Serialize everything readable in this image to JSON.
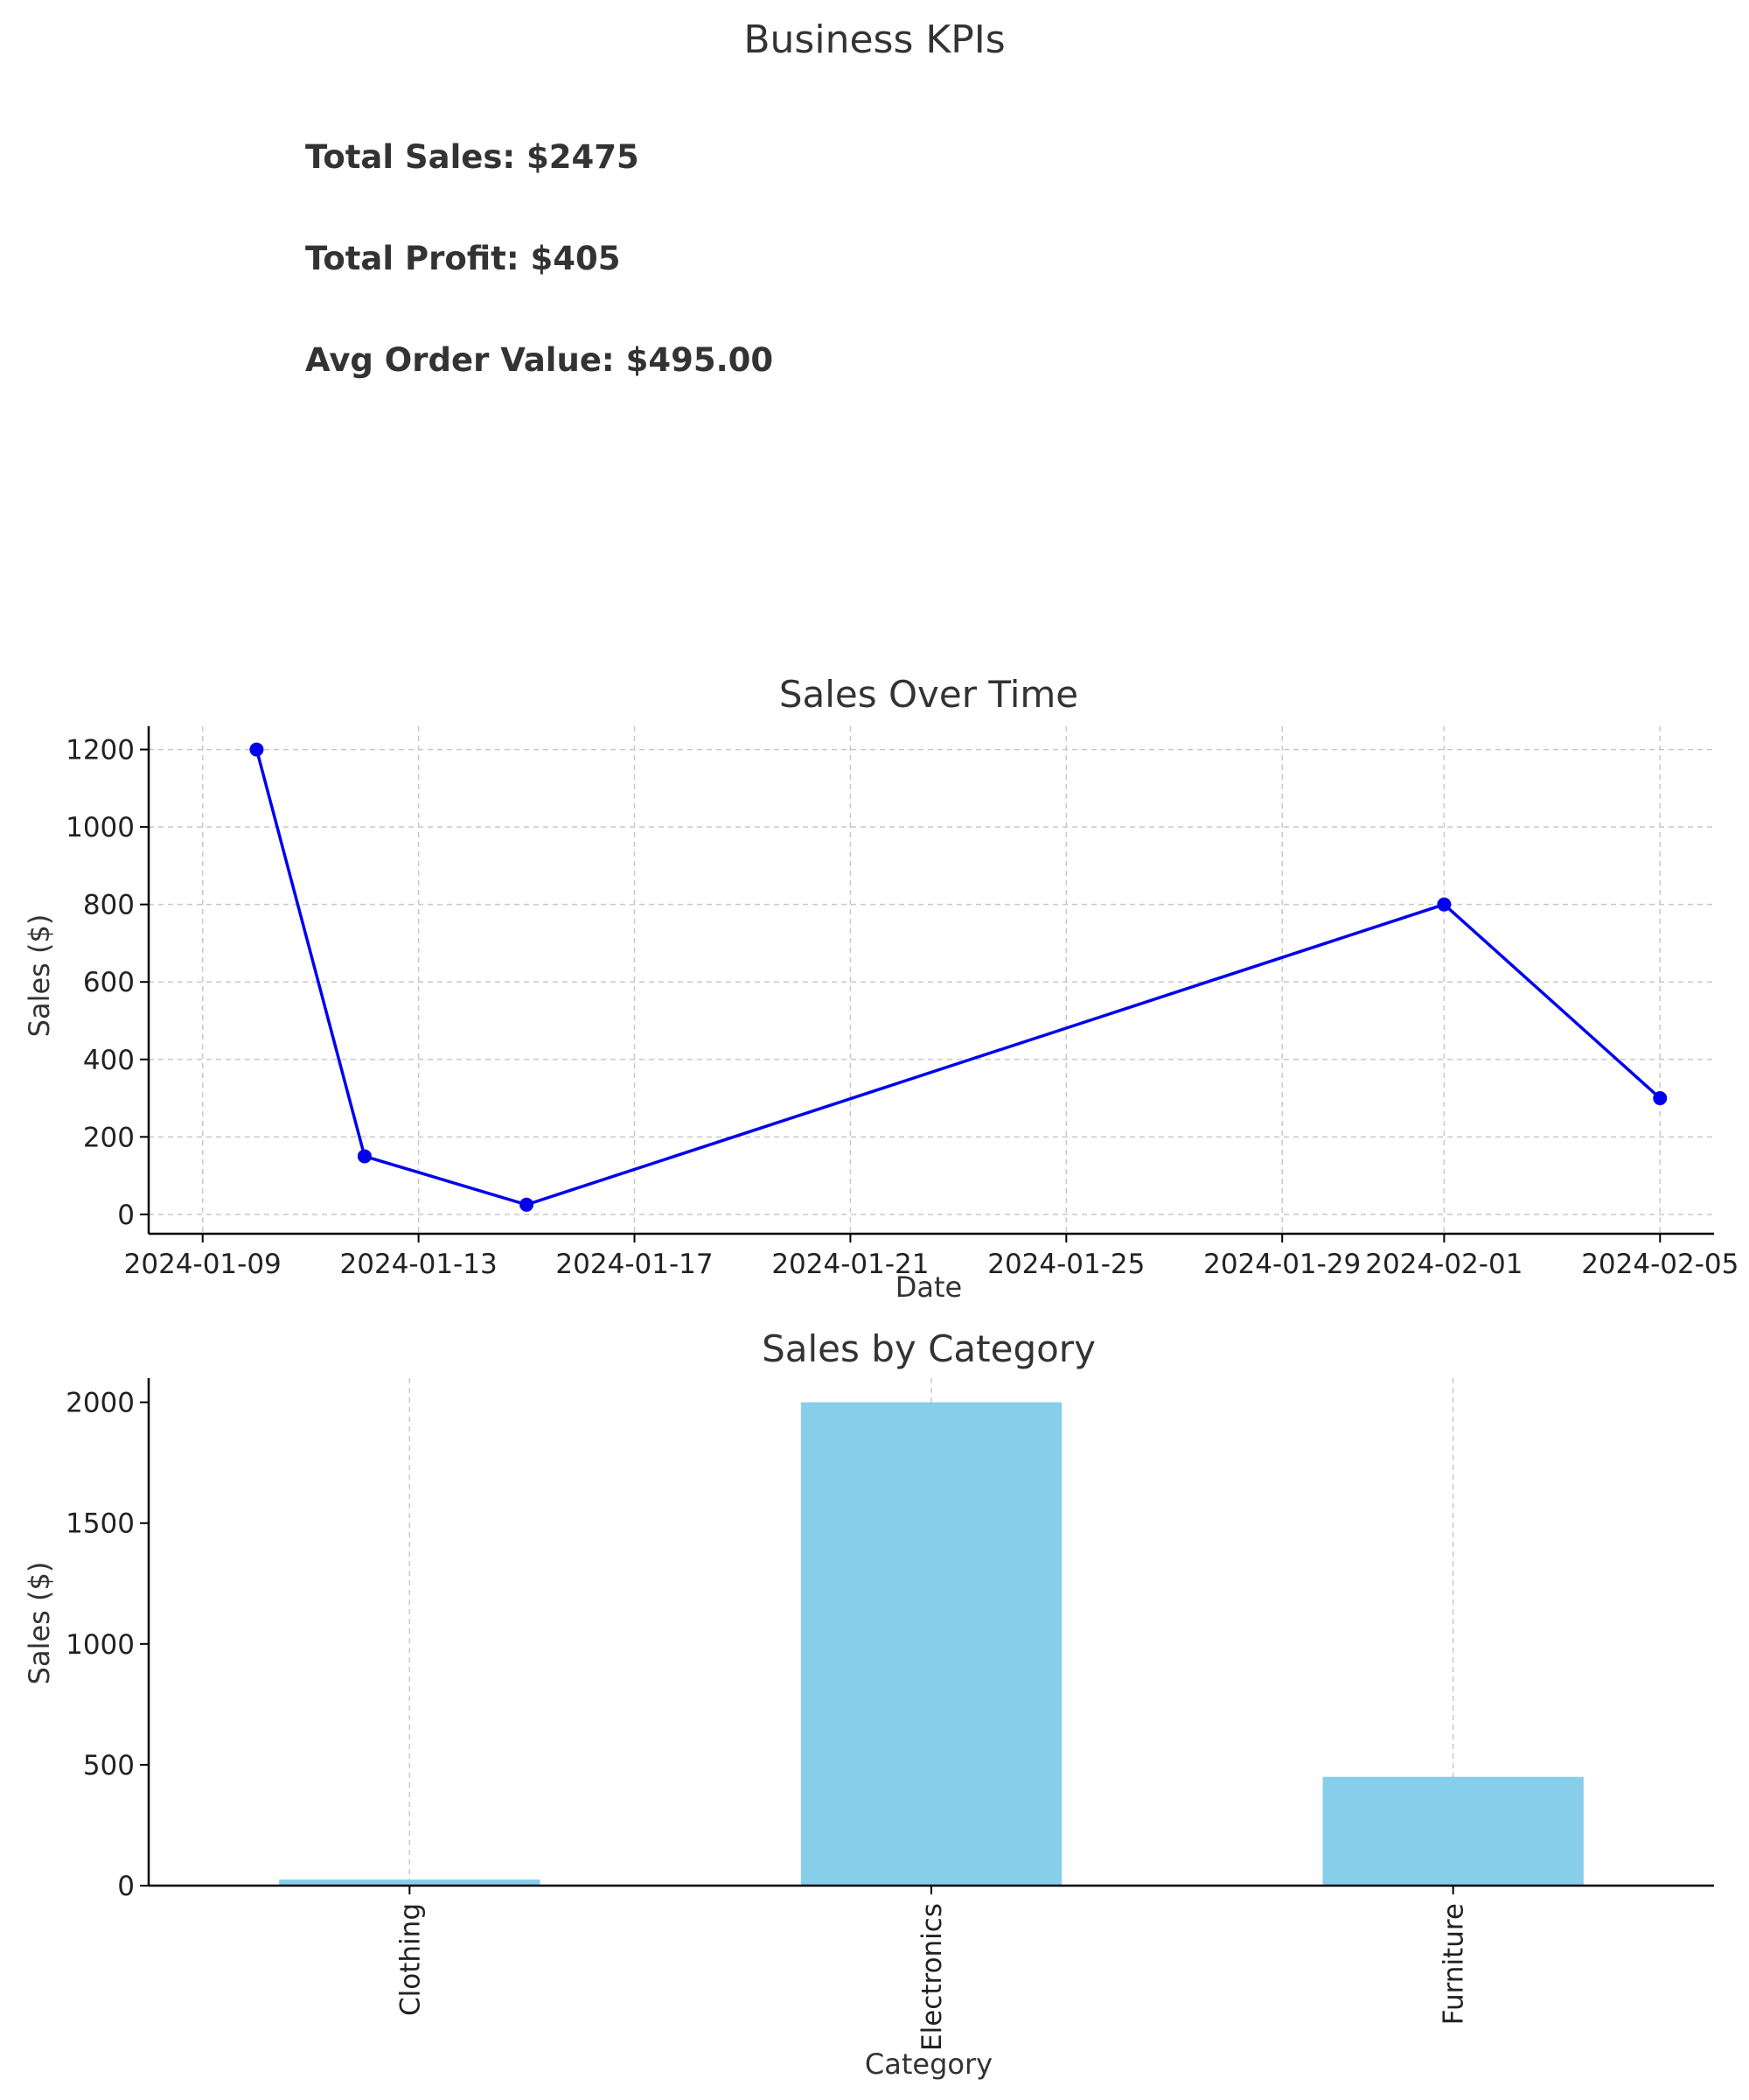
{
  "kpis": {
    "title": "Business KPIs",
    "total_sales": "Total Sales: $2475",
    "total_profit": "Total Profit: $405",
    "avg_order_value": "Avg Order Value: $495.00"
  },
  "colors": {
    "line": "#0000ee",
    "bar": "#87ceeb",
    "grid": "#c8c8c8",
    "text": "#333333"
  },
  "chart_data": [
    {
      "type": "line",
      "title": "Sales Over Time",
      "xlabel": "Date",
      "ylabel": "Sales ($)",
      "x": [
        "2024-01-10",
        "2024-01-12",
        "2024-01-15",
        "2024-02-01",
        "2024-02-05"
      ],
      "series": [
        {
          "values": [
            1200,
            150,
            25,
            800,
            300
          ]
        }
      ],
      "x_ticks": [
        "2024-01-09",
        "2024-01-13",
        "2024-01-17",
        "2024-01-21",
        "2024-01-25",
        "2024-01-29",
        "2024-02-01",
        "2024-02-05"
      ],
      "y_ticks": [
        0,
        200,
        400,
        600,
        800,
        1000,
        1200
      ],
      "ylim": [
        -50,
        1260
      ],
      "xlim": [
        "2024-01-08",
        "2024-02-06"
      ],
      "grid": true,
      "marker": "circle"
    },
    {
      "type": "bar",
      "title": "Sales by Category",
      "xlabel": "Category",
      "ylabel": "Sales ($)",
      "categories": [
        "Clothing",
        "Electronics",
        "Furniture"
      ],
      "values": [
        25,
        2000,
        450
      ],
      "y_ticks": [
        0,
        500,
        1000,
        1500,
        2000
      ],
      "ylim": [
        0,
        2100
      ],
      "grid": true
    }
  ]
}
